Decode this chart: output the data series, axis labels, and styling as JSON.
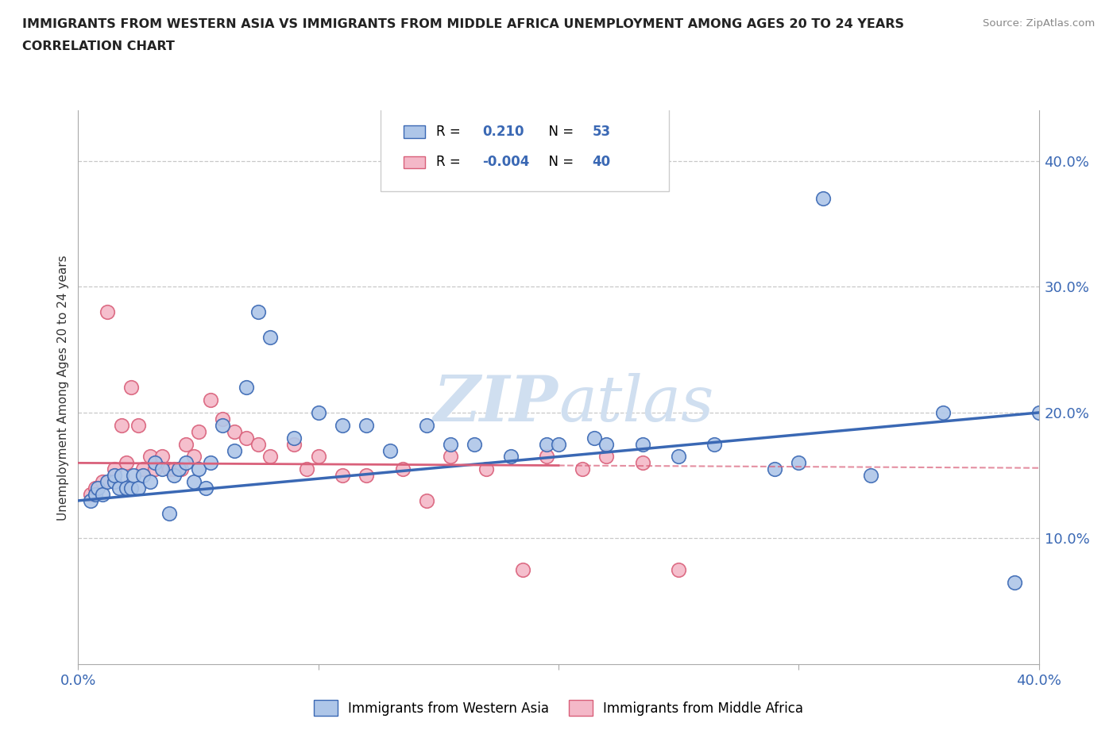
{
  "title_line1": "IMMIGRANTS FROM WESTERN ASIA VS IMMIGRANTS FROM MIDDLE AFRICA UNEMPLOYMENT AMONG AGES 20 TO 24 YEARS",
  "title_line2": "CORRELATION CHART",
  "source_text": "Source: ZipAtlas.com",
  "ylabel": "Unemployment Among Ages 20 to 24 years",
  "xlim": [
    0.0,
    0.4
  ],
  "ylim": [
    0.0,
    0.44
  ],
  "blue_color": "#aec6e8",
  "pink_color": "#f4b8c8",
  "blue_line_color": "#3a68b4",
  "pink_line_color": "#d9607a",
  "watermark_color": "#d0dff0",
  "legend_r1": "0.210",
  "legend_n1": "53",
  "legend_r2": "-0.004",
  "legend_n2": "40",
  "series1_label": "Immigrants from Western Asia",
  "series2_label": "Immigrants from Middle Africa",
  "blue_x": [
    0.005,
    0.007,
    0.008,
    0.01,
    0.012,
    0.015,
    0.015,
    0.017,
    0.018,
    0.02,
    0.022,
    0.023,
    0.025,
    0.027,
    0.03,
    0.032,
    0.035,
    0.038,
    0.04,
    0.042,
    0.045,
    0.048,
    0.05,
    0.053,
    0.055,
    0.06,
    0.065,
    0.07,
    0.075,
    0.08,
    0.09,
    0.1,
    0.11,
    0.12,
    0.13,
    0.145,
    0.155,
    0.165,
    0.18,
    0.195,
    0.2,
    0.215,
    0.22,
    0.235,
    0.25,
    0.265,
    0.29,
    0.3,
    0.31,
    0.33,
    0.36,
    0.39,
    0.4
  ],
  "blue_y": [
    0.13,
    0.135,
    0.14,
    0.135,
    0.145,
    0.145,
    0.15,
    0.14,
    0.15,
    0.14,
    0.14,
    0.15,
    0.14,
    0.15,
    0.145,
    0.16,
    0.155,
    0.12,
    0.15,
    0.155,
    0.16,
    0.145,
    0.155,
    0.14,
    0.16,
    0.19,
    0.17,
    0.22,
    0.28,
    0.26,
    0.18,
    0.2,
    0.19,
    0.19,
    0.17,
    0.19,
    0.175,
    0.175,
    0.165,
    0.175,
    0.175,
    0.18,
    0.175,
    0.175,
    0.165,
    0.175,
    0.155,
    0.16,
    0.37,
    0.15,
    0.2,
    0.065,
    0.2
  ],
  "pink_x": [
    0.005,
    0.007,
    0.01,
    0.012,
    0.015,
    0.018,
    0.02,
    0.022,
    0.025,
    0.027,
    0.03,
    0.032,
    0.035,
    0.038,
    0.04,
    0.043,
    0.045,
    0.048,
    0.05,
    0.055,
    0.06,
    0.065,
    0.07,
    0.075,
    0.08,
    0.09,
    0.095,
    0.1,
    0.11,
    0.12,
    0.135,
    0.145,
    0.155,
    0.17,
    0.185,
    0.195,
    0.21,
    0.22,
    0.235,
    0.25
  ],
  "pink_y": [
    0.135,
    0.14,
    0.145,
    0.28,
    0.155,
    0.19,
    0.16,
    0.22,
    0.19,
    0.155,
    0.165,
    0.155,
    0.165,
    0.155,
    0.155,
    0.155,
    0.175,
    0.165,
    0.185,
    0.21,
    0.195,
    0.185,
    0.18,
    0.175,
    0.165,
    0.175,
    0.155,
    0.165,
    0.15,
    0.15,
    0.155,
    0.13,
    0.165,
    0.155,
    0.075,
    0.165,
    0.155,
    0.165,
    0.16,
    0.075
  ]
}
